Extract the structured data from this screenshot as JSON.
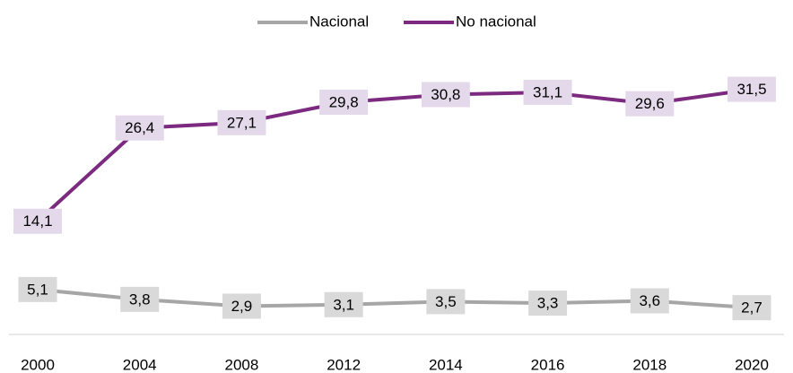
{
  "chart_data": {
    "type": "line",
    "categories": [
      "2000",
      "2004",
      "2008",
      "2012",
      "2014",
      "2016",
      "2018",
      "2020"
    ],
    "series": [
      {
        "name": "Nacional",
        "color": "#a6a6a6",
        "label_fill": "#d9d9d9",
        "values": [
          5.1,
          3.8,
          2.9,
          3.1,
          3.5,
          3.3,
          3.6,
          2.7
        ],
        "value_labels": [
          "5,1",
          "3,8",
          "2,9",
          "3,1",
          "3,5",
          "3,3",
          "3,6",
          "2,7"
        ]
      },
      {
        "name": "No nacional",
        "color": "#7b2a7f",
        "label_fill": "#e4d9ea",
        "values": [
          14.1,
          26.4,
          27.1,
          29.8,
          30.8,
          31.1,
          29.6,
          31.5
        ],
        "value_labels": [
          "14,1",
          "26,4",
          "27,1",
          "29,8",
          "30,8",
          "31,1",
          "29,6",
          "31,5"
        ]
      }
    ],
    "ylim": [
      0,
      35
    ],
    "legend": "top"
  }
}
